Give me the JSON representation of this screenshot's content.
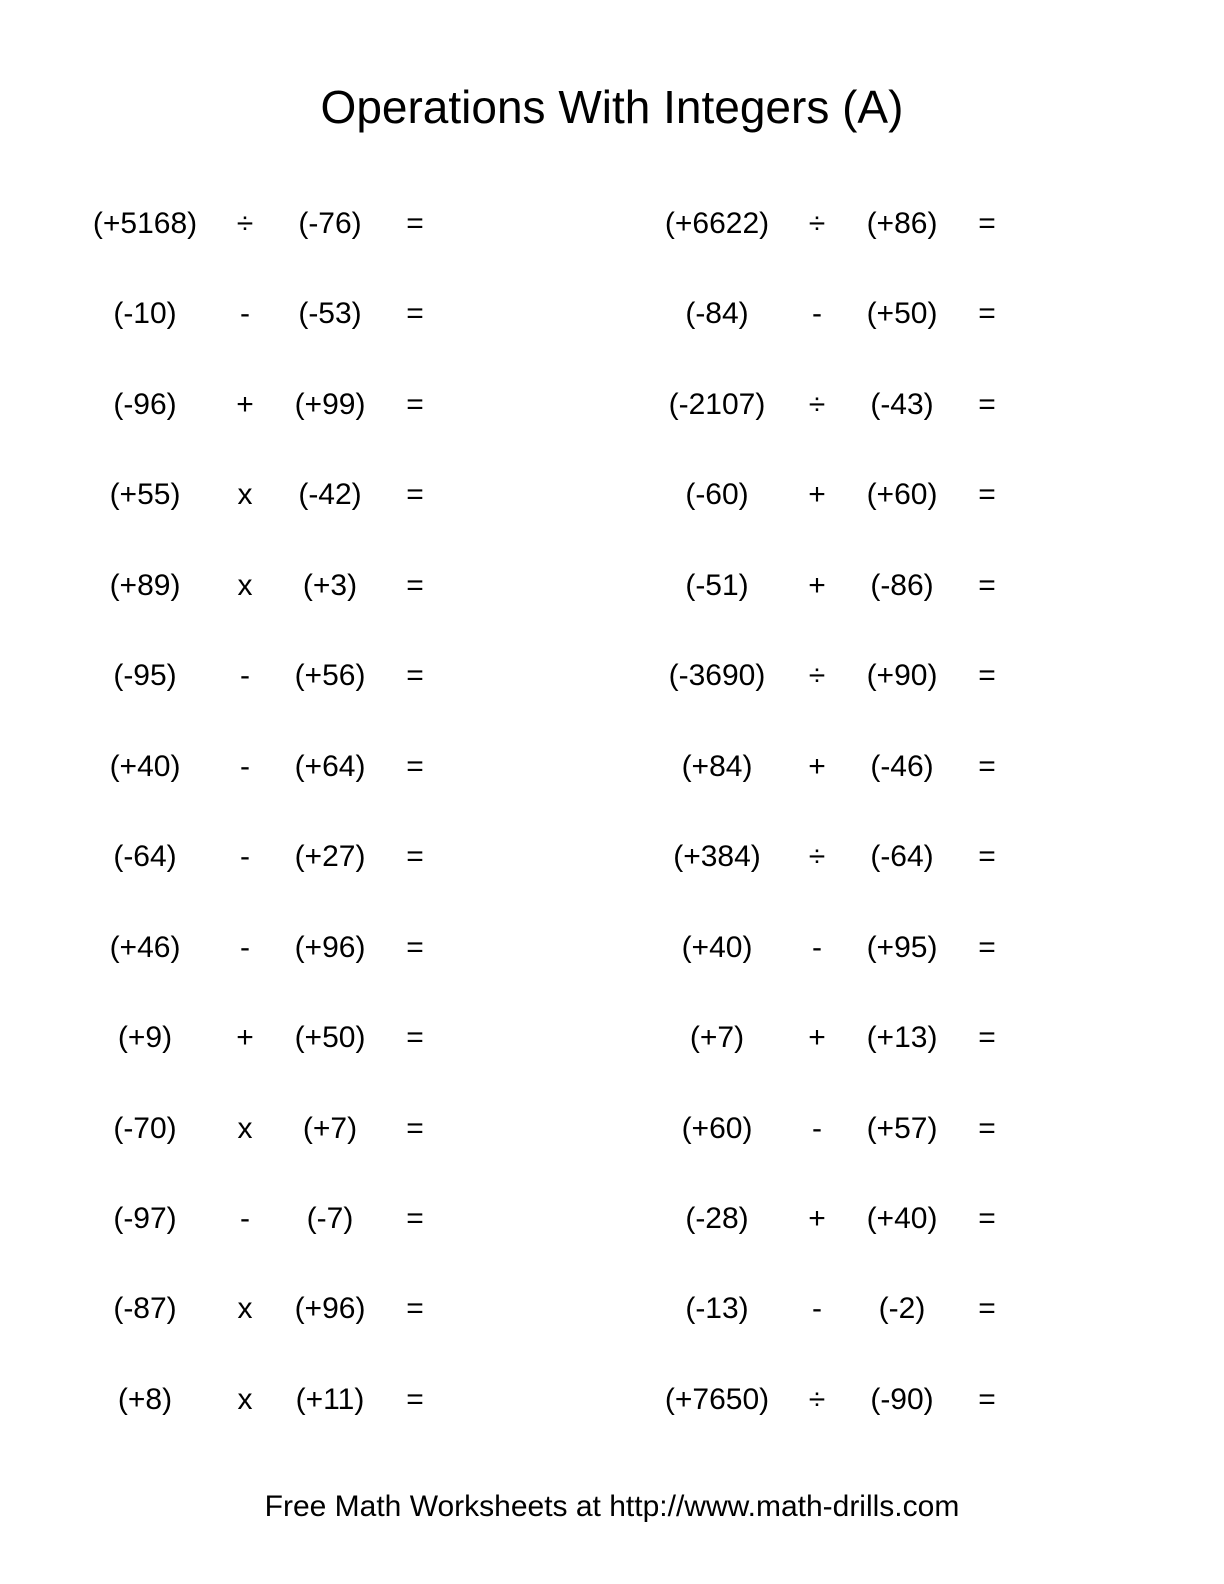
{
  "title": "Operations With Integers (A)",
  "footer": "Free Math Worksheets at http://www.math-drills.com",
  "equals": "=",
  "left": [
    {
      "a": "(+5168)",
      "op": "÷",
      "b": "(-76)"
    },
    {
      "a": "(-10)",
      "op": "-",
      "b": "(-53)"
    },
    {
      "a": "(-96)",
      "op": "+",
      "b": "(+99)"
    },
    {
      "a": "(+55)",
      "op": "x",
      "b": "(-42)"
    },
    {
      "a": "(+89)",
      "op": "x",
      "b": "(+3)"
    },
    {
      "a": "(-95)",
      "op": "-",
      "b": "(+56)"
    },
    {
      "a": "(+40)",
      "op": "-",
      "b": "(+64)"
    },
    {
      "a": "(-64)",
      "op": "-",
      "b": "(+27)"
    },
    {
      "a": "(+46)",
      "op": "-",
      "b": "(+96)"
    },
    {
      "a": "(+9)",
      "op": "+",
      "b": "(+50)"
    },
    {
      "a": "(-70)",
      "op": "x",
      "b": "(+7)"
    },
    {
      "a": "(-97)",
      "op": "-",
      "b": "(-7)"
    },
    {
      "a": "(-87)",
      "op": "x",
      "b": "(+96)"
    },
    {
      "a": "(+8)",
      "op": "x",
      "b": "(+11)"
    }
  ],
  "right": [
    {
      "a": "(+6622)",
      "op": "÷",
      "b": "(+86)"
    },
    {
      "a": "(-84)",
      "op": "-",
      "b": "(+50)"
    },
    {
      "a": "(-2107)",
      "op": "÷",
      "b": "(-43)"
    },
    {
      "a": "(-60)",
      "op": "+",
      "b": "(+60)"
    },
    {
      "a": "(-51)",
      "op": "+",
      "b": "(-86)"
    },
    {
      "a": "(-3690)",
      "op": "÷",
      "b": "(+90)"
    },
    {
      "a": "(+84)",
      "op": "+",
      "b": "(-46)"
    },
    {
      "a": "(+384)",
      "op": "÷",
      "b": "(-64)"
    },
    {
      "a": "(+40)",
      "op": "-",
      "b": "(+95)"
    },
    {
      "a": "(+7)",
      "op": "+",
      "b": "(+13)"
    },
    {
      "a": "(+60)",
      "op": "-",
      "b": "(+57)"
    },
    {
      "a": "(-28)",
      "op": "+",
      "b": "(+40)"
    },
    {
      "a": "(-13)",
      "op": "-",
      "b": "(-2)"
    },
    {
      "a": "(+7650)",
      "op": "÷",
      "b": "(-90)"
    }
  ]
}
